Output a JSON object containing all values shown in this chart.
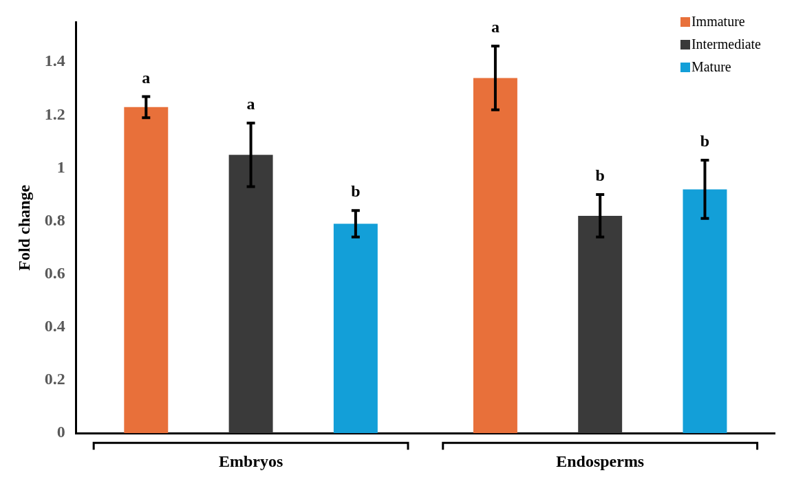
{
  "chart_data": {
    "type": "bar",
    "ylabel": "Fold change",
    "categories": [
      "Embryos",
      "Endosperms"
    ],
    "series": [
      {
        "name": "Immature",
        "color": "#e8703a",
        "values": [
          1.23,
          1.34
        ],
        "errors": [
          0.04,
          0.12
        ]
      },
      {
        "name": "Intermediate",
        "color": "#3a3a3a",
        "values": [
          1.05,
          0.82
        ],
        "errors": [
          0.12,
          0.08
        ]
      },
      {
        "name": "Mature",
        "color": "#139fd8",
        "values": [
          0.79,
          0.92
        ],
        "errors": [
          0.05,
          0.11
        ]
      }
    ],
    "ylim": [
      0,
      1.55
    ],
    "yticks": [
      0,
      0.2,
      0.4,
      0.6,
      0.8,
      1,
      1.2,
      1.4
    ],
    "grid": false,
    "legend": "top right",
    "annotations": [
      "a",
      "a",
      "b",
      "a",
      "b",
      "b"
    ]
  }
}
